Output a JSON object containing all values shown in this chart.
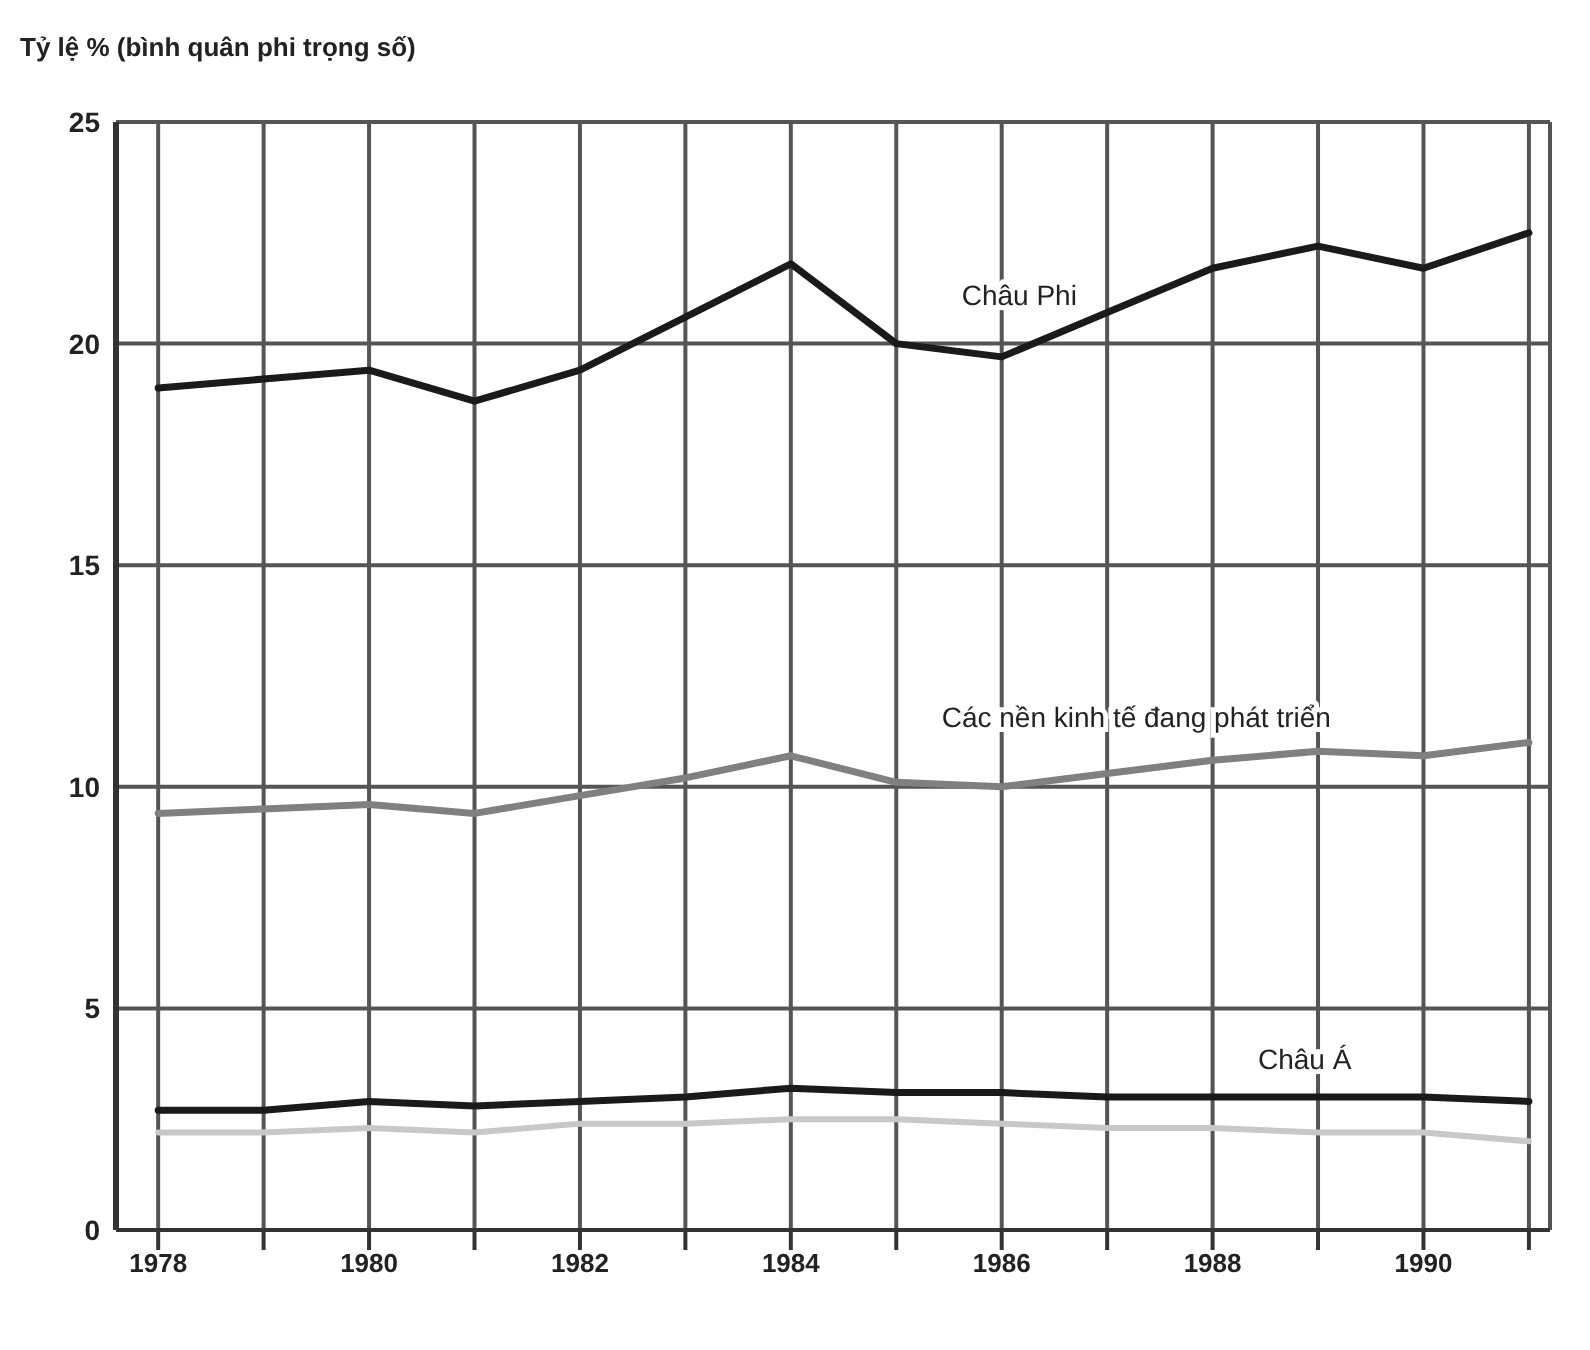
{
  "chart_data": {
    "type": "line",
    "ylabel": "Tỷ lệ % (bình quân phi trọng số)",
    "x": [
      1978,
      1979,
      1980,
      1981,
      1982,
      1983,
      1984,
      1985,
      1986,
      1987,
      1988,
      1989,
      1990,
      1991
    ],
    "series": [
      {
        "name": "Châu Phi",
        "color": "#1a1a1a",
        "values": [
          19.0,
          19.2,
          19.4,
          18.7,
          19.4,
          20.6,
          21.8,
          20.0,
          19.7,
          20.7,
          21.7,
          22.2,
          21.7,
          22.5
        ]
      },
      {
        "name": "Các nền kinh tế đang phát triển",
        "color": "#808080",
        "values": [
          9.4,
          9.5,
          9.6,
          9.4,
          9.8,
          10.2,
          10.7,
          10.1,
          10.0,
          10.3,
          10.6,
          10.8,
          10.7,
          11.0
        ]
      },
      {
        "name": "Châu Á",
        "color": "#1a1a1a",
        "values": [
          2.7,
          2.7,
          2.9,
          2.8,
          2.9,
          3.0,
          3.2,
          3.1,
          3.1,
          3.0,
          3.0,
          3.0,
          3.0,
          2.9
        ]
      },
      {
        "color": "#c8c8c8",
        "values": [
          2.2,
          2.2,
          2.3,
          2.2,
          2.4,
          2.4,
          2.5,
          2.5,
          2.4,
          2.3,
          2.3,
          2.2,
          2.2,
          2.0
        ]
      }
    ],
    "xlim": [
      1977.6,
      1991.2
    ],
    "xticks": [
      1978,
      {
        "value": 1979,
        "label": null
      },
      1980,
      {
        "value": 1981,
        "label": null
      },
      1982,
      {
        "value": 1983,
        "label": null
      },
      1984,
      {
        "value": 1985,
        "label": null
      },
      1986,
      {
        "value": 1987,
        "label": null
      },
      1988,
      {
        "value": 1989,
        "label": null
      },
      1990,
      {
        "value": 1991,
        "label": null
      }
    ],
    "ylim": [
      0,
      25
    ],
    "yticks": [
      0,
      5,
      10,
      15,
      20,
      25
    ],
    "grid": true,
    "marker": "none",
    "line_style": "solid"
  }
}
